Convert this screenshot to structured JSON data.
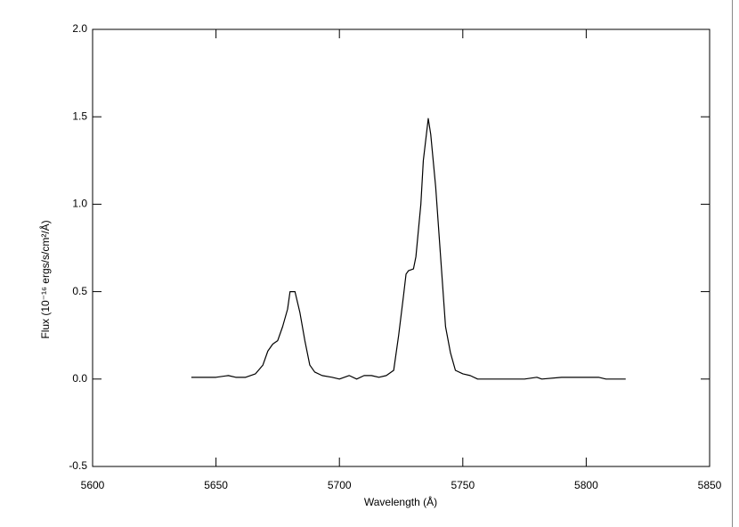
{
  "chart_data": {
    "type": "line",
    "xlabel": "Wavelength (Å)",
    "ylabel": "Flux (10⁻¹⁶ ergs/s/cm²/Å)",
    "xlim": [
      5600,
      5850
    ],
    "xticks": [
      5600,
      5650,
      5700,
      5750,
      5800,
      5850
    ],
    "ylim": [
      -0.5,
      2.0
    ],
    "yticks": [
      {
        "value": -0.5,
        "label": "-0.5"
      },
      {
        "value": 0,
        "label": "0.0"
      },
      {
        "value": 0.5,
        "label": "0.5"
      },
      {
        "value": 1,
        "label": "1.0"
      },
      {
        "value": 1.5,
        "label": "1.5"
      },
      {
        "value": 2,
        "label": "2.0"
      }
    ],
    "color": "#000000",
    "x": [
      5640,
      5645,
      5650,
      5655,
      5658,
      5662,
      5666,
      5669,
      5671,
      5673,
      5675,
      5677,
      5679,
      5680,
      5682,
      5684,
      5686,
      5688,
      5690,
      5693,
      5697,
      5700,
      5702,
      5704,
      5707,
      5710,
      5713,
      5716,
      5719,
      5722,
      5724,
      5726,
      5727,
      5728,
      5730,
      5731,
      5733,
      5734,
      5736,
      5737,
      5739,
      5741,
      5743,
      5745,
      5747,
      5750,
      5753,
      5756,
      5760,
      5770,
      5775,
      5780,
      5782,
      5790,
      5800,
      5805,
      5808,
      5816
    ],
    "values": [
      0.01,
      0.01,
      0.01,
      0.02,
      0.01,
      0.01,
      0.03,
      0.08,
      0.16,
      0.2,
      0.22,
      0.3,
      0.4,
      0.5,
      0.5,
      0.38,
      0.22,
      0.08,
      0.04,
      0.02,
      0.01,
      0.0,
      0.01,
      0.02,
      0.0,
      0.02,
      0.02,
      0.01,
      0.02,
      0.05,
      0.25,
      0.48,
      0.6,
      0.62,
      0.63,
      0.7,
      1.0,
      1.25,
      1.49,
      1.4,
      1.1,
      0.7,
      0.3,
      0.15,
      0.05,
      0.03,
      0.02,
      0.0,
      0.0,
      0.0,
      0.0,
      0.01,
      0.0,
      0.01,
      0.01,
      0.01,
      0.0,
      0.0
    ]
  }
}
